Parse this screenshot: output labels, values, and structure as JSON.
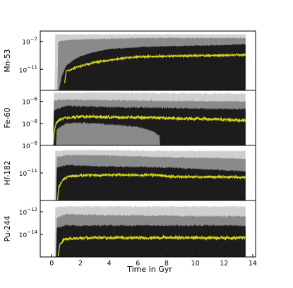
{
  "chart_data": {
    "type": "area",
    "xlabel": "Time in Gyr",
    "xlim": [
      -0.8,
      14.2
    ],
    "xticks": [
      0,
      2,
      4,
      6,
      8,
      10,
      12,
      14
    ],
    "x_data_end": 13.6,
    "colors": {
      "light_band": "#cfcfcf",
      "mid_band": "#8a8a8a",
      "dark_band": "#1c1c1c",
      "median_line": "#d4d41c",
      "frame": "#000000"
    },
    "panels": [
      {
        "ylabel": "Mn-53",
        "scale": "log",
        "ylim": [
          1e-14,
          3e-06
        ],
        "yticks": [
          {
            "value": 1e-07,
            "label": "10^-7"
          },
          {
            "value": 1e-11,
            "label": "10^-11"
          }
        ],
        "series": [
          {
            "role": "light_band",
            "x": [
              0.2,
              0.25,
              0.5,
              1,
              2,
              4,
              6,
              8,
              10,
              12,
              13.5
            ],
            "lower": [
              1e-14,
              1e-14,
              1e-14,
              1e-14,
              1e-14,
              1e-14,
              1e-14,
              1e-14,
              1e-14,
              1e-14,
              1e-14
            ],
            "upper": [
              1e-14,
              1e-06,
              1e-06,
              1e-06,
              1e-06,
              1e-06,
              1e-06,
              1e-06,
              1e-06,
              1e-06,
              1e-06
            ]
          },
          {
            "role": "mid_band",
            "x": [
              0.4,
              0.45,
              1,
              2,
              4,
              6,
              8,
              10,
              12,
              13.5
            ],
            "lower": [
              1e-14,
              1e-14,
              1e-14,
              1e-14,
              1e-14,
              1e-14,
              1e-14,
              1e-14,
              1e-14,
              1e-14
            ],
            "upper": [
              1e-14,
              1e-07,
              1.5e-07,
              2e-07,
              2.5e-07,
              3e-07,
              3e-07,
              3e-07,
              3e-07,
              3e-07
            ]
          },
          {
            "role": "dark_band",
            "x": [
              0.5,
              0.7,
              1,
              1.5,
              2,
              3,
              4,
              6,
              8,
              10,
              12,
              13.5
            ],
            "lower": [
              1e-14,
              1e-14,
              1e-14,
              1e-14,
              1e-14,
              1e-14,
              1e-14,
              1e-14,
              1e-14,
              1e-14,
              1e-14,
              1e-14
            ],
            "upper": [
              1e-14,
              1e-12,
              3e-11,
              2e-10,
              8e-10,
              3e-09,
              8e-09,
              1.5e-08,
              2e-08,
              2.5e-08,
              3e-08,
              4e-08
            ]
          },
          {
            "role": "median_line",
            "x": [
              0.9,
              1,
              1.5,
              2,
              3,
              4,
              5,
              6,
              7,
              8,
              10,
              12,
              13.5
            ],
            "y": [
              1e-13,
              5e-12,
              1.2e-11,
              3e-11,
              1e-10,
              2e-10,
              4e-10,
              6e-10,
              7e-10,
              8e-10,
              9e-10,
              1e-09,
              1.2e-09
            ]
          }
        ]
      },
      {
        "ylabel": "Fe-60",
        "scale": "log",
        "ylim": [
          1e-10,
          1e-05
        ],
        "yticks": [
          {
            "value": 1e-06,
            "label": "10^-6"
          },
          {
            "value": 1e-08,
            "label": "10^-8"
          }
        ],
        "series": [
          {
            "role": "light_band",
            "x": [
              0.1,
              0.15,
              1,
              4,
              8,
              12,
              13.5
            ],
            "lower": [
              1e-10,
              1e-10,
              1e-10,
              1e-10,
              1e-10,
              1e-10,
              1e-10
            ],
            "upper": [
              1e-10,
              6e-06,
              6e-06,
              6e-06,
              5.5e-06,
              5e-06,
              5e-06
            ]
          },
          {
            "role": "mid_band",
            "x": [
              0.1,
              0.15,
              1,
              4,
              8,
              12,
              13.5
            ],
            "lower": [
              1e-10,
              1e-10,
              1e-10,
              1e-10,
              1e-10,
              1e-10,
              1e-10
            ],
            "upper": [
              1e-10,
              1.2e-06,
              1.5e-06,
              1.3e-06,
              1.1e-06,
              1e-06,
              1e-06
            ]
          },
          {
            "role": "dark_band",
            "x": [
              0.1,
              0.15,
              1,
              4,
              8,
              12,
              13.5
            ],
            "lower": [
              1e-10,
              1e-10,
              1e-10,
              1e-10,
              1e-10,
              1e-10,
              1e-10
            ],
            "upper": [
              1e-10,
              1.5e-07,
              4e-07,
              3e-07,
              2.5e-07,
              2e-07,
              2e-07
            ]
          },
          {
            "role": "mid_band",
            "x": [
              0.3,
              0.35,
              1,
              2,
              4,
              6,
              7,
              7.5,
              7.55
            ],
            "lower": [
              1e-10,
              1e-10,
              1e-10,
              1e-10,
              1e-10,
              1e-10,
              1e-10,
              1e-10,
              1e-10
            ],
            "upper": [
              1e-10,
              3e-09,
              1e-08,
              1.2e-08,
              8e-09,
              5e-09,
              2e-09,
              8e-10,
              1e-10
            ]
          },
          {
            "role": "median_line",
            "x": [
              0.1,
              0.15,
              0.3,
              0.6,
              1,
              2,
              4,
              6,
              8,
              10,
              12,
              13.5
            ],
            "y": [
              1e-10,
              1e-09,
              1e-08,
              2.5e-08,
              3.5e-08,
              4e-08,
              3.8e-08,
              3.4e-08,
              3e-08,
              2.6e-08,
              2.2e-08,
              1.9e-08
            ]
          }
        ]
      },
      {
        "ylabel": "Hf-182",
        "scale": "log",
        "ylim": [
          1e-14,
          1e-08
        ],
        "yticks": [
          {
            "value": 1e-08,
            "label": "10^-8"
          },
          {
            "value": 1e-11,
            "label": "10^-11"
          }
        ],
        "series": [
          {
            "role": "light_band",
            "x": [
              0.2,
              0.25,
              1,
              4,
              8,
              12,
              13.5
            ],
            "lower": [
              1e-14,
              1e-14,
              1e-14,
              1e-14,
              1e-14,
              1e-14,
              1e-14
            ],
            "upper": [
              1e-14,
              2.5e-09,
              3e-09,
              3e-09,
              2.5e-09,
              2.5e-09,
              2.5e-09
            ]
          },
          {
            "role": "mid_band",
            "x": [
              0.3,
              0.35,
              1,
              4,
              8,
              12,
              13.5
            ],
            "lower": [
              1e-14,
              1e-14,
              1e-14,
              1e-14,
              1e-14,
              1e-14,
              1e-14
            ],
            "upper": [
              1e-14,
              5e-10,
              9e-10,
              8e-10,
              5e-10,
              4e-10,
              3.5e-10
            ]
          },
          {
            "role": "dark_band",
            "x": [
              0.3,
              0.35,
              1,
              4,
              8,
              12,
              13.5
            ],
            "lower": [
              1e-14,
              1e-14,
              1e-14,
              1e-14,
              1e-14,
              1e-14,
              1e-14
            ],
            "upper": [
              1e-14,
              4e-11,
              7e-11,
              5e-11,
              4e-11,
              2e-11,
              1.6e-11
            ]
          },
          {
            "role": "median_line",
            "x": [
              0.4,
              0.5,
              0.8,
              1.2,
              2,
              4,
              6,
              7.5,
              8.5,
              10,
              12,
              13.5
            ],
            "y": [
              1e-14,
              3e-13,
              2e-12,
              4e-12,
              5.5e-12,
              6e-12,
              6e-12,
              5.5e-12,
              4e-12,
              3.8e-12,
              3.6e-12,
              3.3e-12
            ]
          }
        ]
      },
      {
        "ylabel": "Pu-244",
        "scale": "log",
        "ylim": [
          1e-16,
          1e-11
        ],
        "yticks": [
          {
            "value": 1e-12,
            "label": "10^-12"
          },
          {
            "value": 1e-14,
            "label": "10^-14"
          }
        ],
        "series": [
          {
            "role": "light_band",
            "x": [
              0.2,
              0.25,
              1,
              4,
              8,
              12,
              13.5
            ],
            "lower": [
              1e-16,
              1e-16,
              1e-16,
              1e-16,
              1e-16,
              1e-16,
              1e-16
            ],
            "upper": [
              1e-16,
              2.5e-12,
              3e-12,
              3e-12,
              3e-12,
              3e-12,
              3e-12
            ]
          },
          {
            "role": "mid_band",
            "x": [
              0.3,
              0.35,
              1,
              4,
              8,
              12,
              13.5
            ],
            "lower": [
              1e-16,
              1e-16,
              1e-16,
              1e-16,
              1e-16,
              1e-16,
              1e-16
            ],
            "upper": [
              1e-16,
              3e-13,
              6e-13,
              5e-13,
              4.5e-13,
              4e-13,
              4e-13
            ]
          },
          {
            "role": "dark_band",
            "x": [
              0.3,
              0.35,
              1,
              4,
              8,
              12,
              13.5
            ],
            "lower": [
              1e-16,
              1e-16,
              1e-16,
              1e-16,
              1e-16,
              1e-16,
              1e-16
            ],
            "upper": [
              1e-16,
              4e-14,
              6e-14,
              6e-14,
              6e-14,
              6e-14,
              6e-14
            ]
          },
          {
            "role": "median_line",
            "x": [
              0.45,
              0.55,
              0.8,
              1,
              2,
              4,
              6,
              8,
              10,
              12,
              13.5
            ],
            "y": [
              1e-16,
              1e-15,
              3e-15,
              4e-15,
              5e-15,
              5e-15,
              5e-15,
              5e-15,
              5e-15,
              5e-15,
              5e-15
            ]
          }
        ]
      }
    ]
  }
}
